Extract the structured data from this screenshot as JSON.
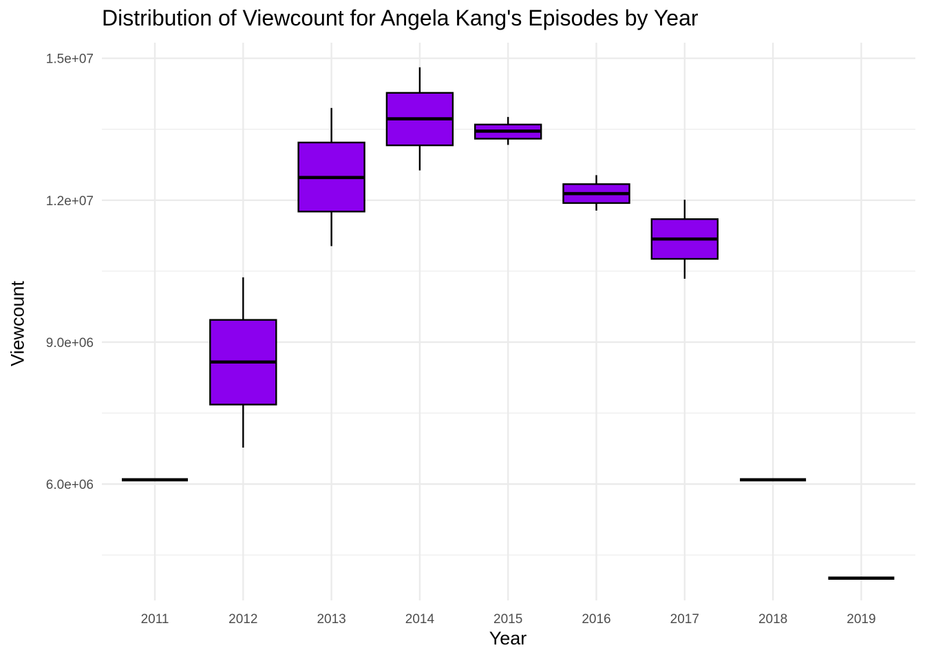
{
  "chart_data": {
    "type": "boxplot",
    "title": "Distribution of Viewcount for Angela Kang's Episodes by Year",
    "xlabel": "Year",
    "ylabel": "Viewcount",
    "categories": [
      "2011",
      "2012",
      "2013",
      "2014",
      "2015",
      "2016",
      "2017",
      "2018",
      "2019"
    ],
    "boxes": [
      {
        "year": "2011",
        "min": 6090000,
        "q1": 6090000,
        "median": 6090000,
        "q3": 6090000,
        "max": 6090000
      },
      {
        "year": "2012",
        "min": 6770000,
        "q1": 7680000,
        "median": 8580000,
        "q3": 9470000,
        "max": 10370000
      },
      {
        "year": "2013",
        "min": 11030000,
        "q1": 11760000,
        "median": 12480000,
        "q3": 13220000,
        "max": 13950000
      },
      {
        "year": "2014",
        "min": 12630000,
        "q1": 13160000,
        "median": 13720000,
        "q3": 14270000,
        "max": 14810000
      },
      {
        "year": "2015",
        "min": 13170000,
        "q1": 13300000,
        "median": 13460000,
        "q3": 13600000,
        "max": 13760000
      },
      {
        "year": "2016",
        "min": 11780000,
        "q1": 11940000,
        "median": 12140000,
        "q3": 12340000,
        "max": 12530000
      },
      {
        "year": "2017",
        "min": 10340000,
        "q1": 10760000,
        "median": 11180000,
        "q3": 11600000,
        "max": 12010000
      },
      {
        "year": "2018",
        "min": 6090000,
        "q1": 6090000,
        "median": 6090000,
        "q3": 6090000,
        "max": 6090000
      },
      {
        "year": "2019",
        "min": 4010000,
        "q1": 4010000,
        "median": 4010000,
        "q3": 4010000,
        "max": 4010000
      }
    ],
    "ylim": [
      3540000,
      15330000
    ],
    "yticks": [
      6000000,
      9000000,
      12000000,
      15000000
    ],
    "ytick_labels": [
      "6.0e+06",
      "9.0e+06",
      "1.2e+07",
      "1.5e+07"
    ],
    "y_minor_ticks": [
      4500000,
      7500000,
      10500000,
      13500000
    ],
    "grid": true,
    "fill_color": "#8B00EE",
    "line_color": "#000000",
    "grid_color": "#EBEBEB"
  }
}
